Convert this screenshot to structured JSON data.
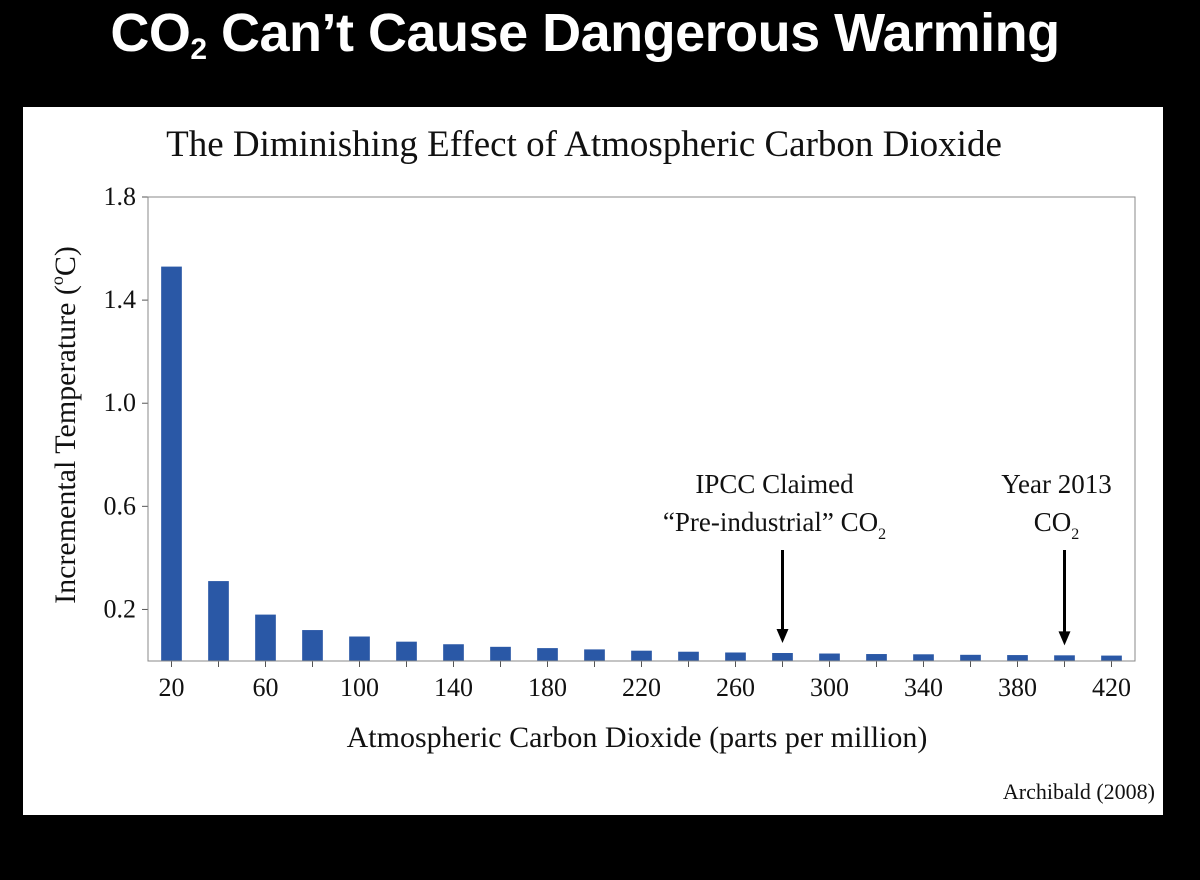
{
  "slide": {
    "title_prefix": "CO",
    "title_sub": "2",
    "title_suffix": " Can’t Cause Dangerous Warming"
  },
  "colors": {
    "bar": "#2a58a6",
    "background": "#000000",
    "panel": "#ffffff"
  },
  "chart_data": {
    "type": "bar",
    "title": "The Diminishing Effect of Atmospheric Carbon Dioxide",
    "xlabel": "Atmospheric Carbon Dioxide (parts per million)",
    "ylabel": "Incremental Temperature (°C)",
    "ylabel_parts": {
      "before": "Incremental Temperature (",
      "sup": "o",
      "after": "C)"
    },
    "ylim": [
      0,
      1.8
    ],
    "yticks": [
      "0.2",
      "0.6",
      "1.0",
      "1.4",
      "1.8"
    ],
    "ytick_values": [
      0.2,
      0.6,
      1.0,
      1.4,
      1.8
    ],
    "categories": [
      20,
      40,
      60,
      80,
      100,
      120,
      140,
      160,
      180,
      200,
      220,
      240,
      260,
      280,
      300,
      320,
      340,
      360,
      380,
      400,
      420
    ],
    "xtick_labels": [
      "20",
      "60",
      "100",
      "140",
      "180",
      "220",
      "260",
      "300",
      "340",
      "380",
      "420"
    ],
    "values": [
      1.53,
      0.31,
      0.18,
      0.12,
      0.095,
      0.075,
      0.065,
      0.055,
      0.05,
      0.045,
      0.04,
      0.036,
      0.033,
      0.031,
      0.029,
      0.027,
      0.026,
      0.024,
      0.023,
      0.022,
      0.021
    ],
    "annotations": [
      {
        "x": 280,
        "line1": "IPCC Claimed",
        "line2_main": "“Pre-industrial” CO",
        "line2_sub": "2"
      },
      {
        "x": 400,
        "line1": "Year 2013",
        "line2_main": "CO",
        "line2_sub": "2"
      }
    ],
    "source": "Archibald (2008)"
  }
}
